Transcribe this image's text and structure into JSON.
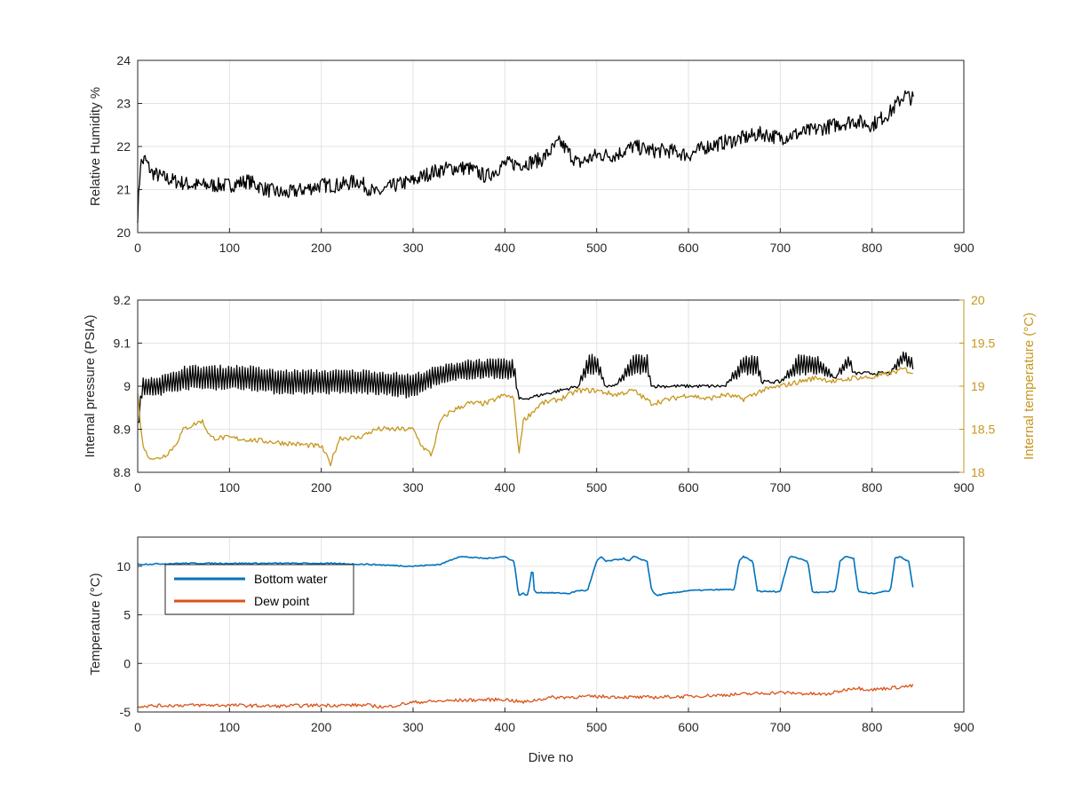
{
  "chart_data": [
    {
      "type": "line",
      "xlabel": "",
      "ylabel": "Relative Humidity %",
      "xlim": [
        0,
        900
      ],
      "ylim": [
        20,
        24
      ],
      "xticks": [
        "0",
        "100",
        "200",
        "300",
        "400",
        "500",
        "600",
        "700",
        "800",
        "900"
      ],
      "yticks": [
        "20",
        "21",
        "22",
        "23",
        "24"
      ],
      "grid": true,
      "colors": {
        "line": "#000000"
      },
      "series": [
        {
          "x": [
            0,
            3,
            8,
            15,
            25,
            40,
            60,
            80,
            100,
            120,
            140,
            160,
            180,
            200,
            220,
            240,
            260,
            280,
            300,
            320,
            340,
            360,
            380,
            400,
            420,
            440,
            460,
            480,
            500,
            520,
            540,
            560,
            580,
            600,
            620,
            640,
            660,
            680,
            700,
            720,
            740,
            760,
            780,
            800,
            820,
            835,
            845
          ],
          "y": [
            20.4,
            21.6,
            21.7,
            21.4,
            21.3,
            21.2,
            21.1,
            21.1,
            21.1,
            21.2,
            21.0,
            20.9,
            21.0,
            21.1,
            21.1,
            21.2,
            20.9,
            21.1,
            21.2,
            21.4,
            21.5,
            21.5,
            21.3,
            21.6,
            21.6,
            21.7,
            22.1,
            21.6,
            21.8,
            21.8,
            22.0,
            21.9,
            21.9,
            21.8,
            22.0,
            22.1,
            22.2,
            22.3,
            22.2,
            22.3,
            22.4,
            22.5,
            22.6,
            22.5,
            22.8,
            23.2,
            23.1
          ]
        }
      ]
    },
    {
      "type": "line",
      "xlabel": "",
      "ylabel": "Internal pressure (PSIA)",
      "ylabel_right": "Internal temperature (°C)",
      "xlim": [
        0,
        900
      ],
      "ylim": [
        8.8,
        9.2
      ],
      "ylim_right": [
        18,
        20
      ],
      "xticks": [
        "0",
        "100",
        "200",
        "300",
        "400",
        "500",
        "600",
        "700",
        "800",
        "900"
      ],
      "yticks": [
        "8.8",
        "8.9",
        "9",
        "9.1",
        "9.2"
      ],
      "yticks_right": [
        "18",
        "18.5",
        "19",
        "19.5",
        "20"
      ],
      "grid": true,
      "colors": {
        "pressure": "#000000",
        "temperature": "#c8961e"
      },
      "series": [
        {
          "axis": "left",
          "x": [
            0,
            5,
            10,
            20,
            40,
            50,
            80,
            100,
            120,
            150,
            200,
            250,
            300,
            320,
            340,
            360,
            380,
            400,
            410,
            415,
            420,
            440,
            460,
            480,
            490,
            500,
            510,
            520,
            540,
            555,
            560,
            600,
            640,
            660,
            675,
            680,
            700,
            720,
            740,
            760,
            775,
            780,
            800,
            820,
            835,
            845
          ],
          "y": [
            8.9,
            9.0,
            9.0,
            9.0,
            9.01,
            9.02,
            9.02,
            9.02,
            9.02,
            9.01,
            9.01,
            9.01,
            9.0,
            9.02,
            9.03,
            9.04,
            9.04,
            9.04,
            9.04,
            8.97,
            8.97,
            8.98,
            8.99,
            9.0,
            9.05,
            9.05,
            9.0,
            9.0,
            9.05,
            9.05,
            9.0,
            9.0,
            9.0,
            9.05,
            9.05,
            9.01,
            9.01,
            9.05,
            9.05,
            9.02,
            9.06,
            9.03,
            9.03,
            9.03,
            9.07,
            9.05
          ],
          "band": [
            0.03,
            0.04,
            0.04,
            0.04,
            0.04,
            0.05,
            0.05,
            0.05,
            0.05,
            0.05,
            0.05,
            0.05,
            0.05,
            0.04,
            0.04,
            0.04,
            0.04,
            0.04,
            0.04,
            0.0,
            0.0,
            0.0,
            0.0,
            0.0,
            0.04,
            0.04,
            0.0,
            0.0,
            0.04,
            0.04,
            0.0,
            0.0,
            0.0,
            0.04,
            0.04,
            0.0,
            0.0,
            0.04,
            0.04,
            0.0,
            0.03,
            0.0,
            0.0,
            0.0,
            0.03,
            0.02
          ]
        },
        {
          "axis": "right",
          "x": [
            0,
            5,
            10,
            20,
            30,
            40,
            50,
            60,
            70,
            80,
            100,
            150,
            200,
            210,
            220,
            240,
            260,
            280,
            300,
            310,
            320,
            330,
            340,
            360,
            380,
            400,
            410,
            415,
            420,
            440,
            460,
            480,
            500,
            520,
            540,
            560,
            580,
            600,
            620,
            640,
            660,
            680,
            700,
            720,
            740,
            760,
            780,
            800,
            820,
            835,
            845
          ],
          "y": [
            18.9,
            18.35,
            18.2,
            18.15,
            18.2,
            18.3,
            18.5,
            18.55,
            18.6,
            18.4,
            18.4,
            18.35,
            18.3,
            18.1,
            18.4,
            18.4,
            18.5,
            18.5,
            18.5,
            18.3,
            18.2,
            18.6,
            18.7,
            18.8,
            18.8,
            18.9,
            18.85,
            18.2,
            18.6,
            18.8,
            18.85,
            18.95,
            18.95,
            18.9,
            18.95,
            18.8,
            18.85,
            18.9,
            18.85,
            18.9,
            18.85,
            18.95,
            19.0,
            19.05,
            19.1,
            19.05,
            19.1,
            19.1,
            19.15,
            19.2,
            19.15
          ]
        }
      ]
    },
    {
      "type": "line",
      "xlabel": "Dive no",
      "ylabel": "Temperature (°C)",
      "xlim": [
        0,
        900
      ],
      "ylim": [
        -5,
        13
      ],
      "xticks": [
        "0",
        "100",
        "200",
        "300",
        "400",
        "500",
        "600",
        "700",
        "800",
        "900"
      ],
      "yticks": [
        "-5",
        "0",
        "5",
        "10"
      ],
      "yticks_values": [
        -5,
        0,
        5,
        10
      ],
      "grid": true,
      "legend": "top-left",
      "series": [
        {
          "name": "Bottom water",
          "color": "#0072bd",
          "x": [
            0,
            50,
            100,
            150,
            200,
            250,
            300,
            330,
            350,
            380,
            400,
            410,
            415,
            420,
            425,
            430,
            432,
            435,
            440,
            470,
            480,
            490,
            500,
            505,
            510,
            530,
            535,
            540,
            555,
            560,
            565,
            600,
            640,
            650,
            655,
            660,
            670,
            675,
            680,
            700,
            710,
            715,
            720,
            730,
            735,
            740,
            760,
            765,
            770,
            780,
            785,
            790,
            800,
            820,
            825,
            830,
            840,
            845
          ],
          "y": [
            10.2,
            10.3,
            10.3,
            10.3,
            10.3,
            10.2,
            10.0,
            10.2,
            11.0,
            10.8,
            11.0,
            10.5,
            7.0,
            7.2,
            7.0,
            10.0,
            7.5,
            7.3,
            7.3,
            7.2,
            7.5,
            7.5,
            10.5,
            11.0,
            10.5,
            10.8,
            10.5,
            11.0,
            10.5,
            7.5,
            7.0,
            7.5,
            7.6,
            7.6,
            10.5,
            11.0,
            10.5,
            7.5,
            7.4,
            7.4,
            11.0,
            11.0,
            10.8,
            10.5,
            7.4,
            7.3,
            7.4,
            10.5,
            11.0,
            10.8,
            7.4,
            7.3,
            7.2,
            7.5,
            10.8,
            11.0,
            10.5,
            7.5
          ]
        },
        {
          "name": "Dew point",
          "color": "#d95319",
          "x": [
            0,
            50,
            100,
            150,
            200,
            250,
            270,
            300,
            350,
            400,
            420,
            450,
            500,
            550,
            600,
            650,
            700,
            750,
            780,
            800,
            845
          ],
          "y": [
            -4.4,
            -4.3,
            -4.3,
            -4.4,
            -4.3,
            -4.3,
            -4.5,
            -4.0,
            -3.8,
            -3.7,
            -4.0,
            -3.5,
            -3.4,
            -3.5,
            -3.4,
            -3.2,
            -3.0,
            -3.2,
            -2.5,
            -2.7,
            -2.3
          ]
        }
      ]
    }
  ]
}
